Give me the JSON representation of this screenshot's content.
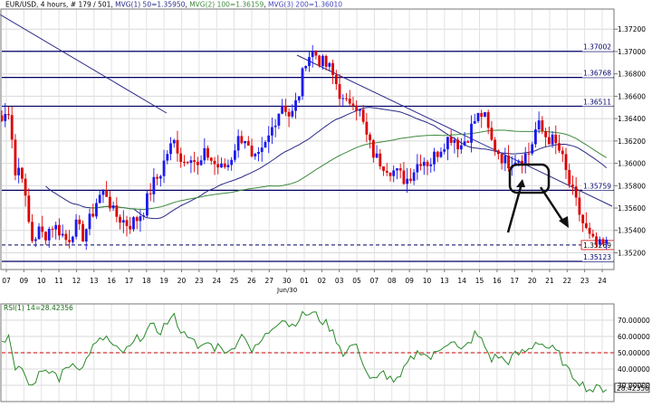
{
  "header": {
    "symbol": "EUR/USD",
    "info": ", 4 hours, # 179 / 501, ",
    "mvg1": "MVG(1) 50=1.35950",
    "mvg2": "MVG(2) 100=1.36159",
    "mvg3": "MVG(3) 200=1.36010"
  },
  "colors": {
    "bull": "#1a1aee",
    "bear": "#dd0000",
    "mvg1": "#2a2a88",
    "mvg2": "#3e8a3e",
    "mvg3": "#4444bb",
    "level": "#000066",
    "rsi": "#2a8a2a",
    "rsi_level": "#cc0000"
  },
  "chart_data": [
    {
      "type": "candlestick",
      "symbol": "EUR/USD",
      "timeframe": "4 hours",
      "ylim": [
        1.3505,
        1.3738
      ],
      "y_ticks": [
        "1.37200",
        "1.37000",
        "1.36800",
        "1.36600",
        "1.36400",
        "1.36200",
        "1.36000",
        "1.35800",
        "1.35600",
        "1.35400",
        "1.35200"
      ],
      "x_ticks": [
        "07",
        "09",
        "10",
        "11",
        "12",
        "13",
        "16",
        "17",
        "18",
        "19",
        "20",
        "23",
        "24",
        "25",
        "26",
        "27",
        "30",
        "01",
        "02",
        "03",
        "05",
        "07",
        "08",
        "09",
        "10",
        "13",
        "14",
        "15",
        "16",
        "17",
        "20",
        "21",
        "22",
        "23",
        "24"
      ],
      "x_sublabel": "Jun/30",
      "grid": true,
      "levels": [
        {
          "value": 1.37002,
          "label": "1.37002"
        },
        {
          "value": 1.36768,
          "label": "1.36768"
        },
        {
          "value": 1.36511,
          "label": "1.36511"
        },
        {
          "value": 1.35759,
          "label": "1.35759"
        },
        {
          "value": 1.35123,
          "label": "1.35123"
        }
      ],
      "current_price": {
        "value": 1.35269,
        "label": "1.35269"
      },
      "close_anchors": [
        [
          0,
          1.3638
        ],
        [
          4,
          1.365
        ],
        [
          7,
          1.359
        ],
        [
          10,
          1.36
        ],
        [
          13,
          1.3555
        ],
        [
          16,
          1.353
        ],
        [
          19,
          1.354
        ],
        [
          22,
          1.3535
        ],
        [
          26,
          1.3545
        ],
        [
          30,
          1.354
        ],
        [
          34,
          1.353
        ],
        [
          38,
          1.3545
        ],
        [
          42,
          1.3535
        ],
        [
          46,
          1.355
        ],
        [
          50,
          1.357
        ],
        [
          54,
          1.3575
        ],
        [
          58,
          1.3555
        ],
        [
          62,
          1.355
        ],
        [
          66,
          1.3545
        ],
        [
          70,
          1.355
        ],
        [
          74,
          1.356
        ],
        [
          78,
          1.358
        ],
        [
          82,
          1.359
        ],
        [
          86,
          1.361
        ],
        [
          90,
          1.362
        ],
        [
          94,
          1.36
        ],
        [
          98,
          1.361
        ],
        [
          102,
          1.3595
        ],
        [
          106,
          1.361
        ],
        [
          110,
          1.36
        ],
        [
          114,
          1.3595
        ],
        [
          118,
          1.36
        ],
        [
          122,
          1.362
        ],
        [
          126,
          1.3625
        ],
        [
          130,
          1.36
        ],
        [
          134,
          1.3605
        ],
        [
          138,
          1.362
        ],
        [
          142,
          1.364
        ],
        [
          146,
          1.3655
        ],
        [
          150,
          1.364
        ],
        [
          154,
          1.366
        ],
        [
          158,
          1.3695
        ],
        [
          162,
          1.37
        ],
        [
          166,
          1.369
        ],
        [
          170,
          1.3685
        ],
        [
          174,
          1.367
        ],
        [
          178,
          1.365
        ],
        [
          182,
          1.366
        ],
        [
          186,
          1.3645
        ],
        [
          190,
          1.362
        ],
        [
          194,
          1.3605
        ],
        [
          198,
          1.36
        ],
        [
          202,
          1.3595
        ],
        [
          206,
          1.359
        ],
        [
          210,
          1.3585
        ],
        [
          214,
          1.3595
        ],
        [
          218,
          1.3605
        ],
        [
          222,
          1.36
        ],
        [
          226,
          1.361
        ],
        [
          230,
          1.362
        ],
        [
          234,
          1.3625
        ],
        [
          238,
          1.3615
        ],
        [
          242,
          1.3625
        ],
        [
          246,
          1.364
        ],
        [
          250,
          1.3645
        ],
        [
          254,
          1.362
        ],
        [
          258,
          1.361
        ],
        [
          262,
          1.36
        ],
        [
          266,
          1.3605
        ],
        [
          270,
          1.3605
        ],
        [
          274,
          1.361
        ],
        [
          278,
          1.3635
        ],
        [
          282,
          1.3625
        ],
        [
          286,
          1.362
        ],
        [
          290,
          1.361
        ],
        [
          294,
          1.3585
        ],
        [
          298,
          1.3565
        ],
        [
          302,
          1.3545
        ],
        [
          306,
          1.353
        ],
        [
          310,
          1.3525
        ],
        [
          314,
          1.3527
        ]
      ],
      "bar_count": 180,
      "moving_averages": [
        {
          "name": "MVG(1) 50",
          "current": 1.3595
        },
        {
          "name": "MVG(2) 100",
          "current": 1.36159
        },
        {
          "name": "MVG(3) 200",
          "current": 1.3601
        }
      ]
    },
    {
      "type": "line",
      "title": "RSI(1) 14=28.42356",
      "ylim": [
        20,
        80
      ],
      "y_ticks": [
        "70.00000",
        "60.00000",
        "50.00000",
        "40.00000",
        "30.00000"
      ],
      "reference_line": 50,
      "current": {
        "value": 28.42356,
        "label": "28.42356"
      },
      "points": [
        [
          0,
          58
        ],
        [
          4,
          60
        ],
        [
          7,
          42
        ],
        [
          10,
          45
        ],
        [
          13,
          32
        ],
        [
          16,
          30
        ],
        [
          19,
          38
        ],
        [
          22,
          36
        ],
        [
          26,
          39
        ],
        [
          30,
          34
        ],
        [
          34,
          42
        ],
        [
          38,
          44
        ],
        [
          42,
          40
        ],
        [
          46,
          52
        ],
        [
          50,
          56
        ],
        [
          54,
          60
        ],
        [
          58,
          53
        ],
        [
          62,
          50
        ],
        [
          66,
          52
        ],
        [
          70,
          58
        ],
        [
          74,
          62
        ],
        [
          78,
          66
        ],
        [
          82,
          63
        ],
        [
          86,
          69
        ],
        [
          90,
          72
        ],
        [
          94,
          61
        ],
        [
          98,
          62
        ],
        [
          102,
          50
        ],
        [
          106,
          57
        ],
        [
          110,
          53
        ],
        [
          114,
          55
        ],
        [
          118,
          48
        ],
        [
          122,
          58
        ],
        [
          126,
          62
        ],
        [
          130,
          50
        ],
        [
          134,
          56
        ],
        [
          138,
          62
        ],
        [
          142,
          68
        ],
        [
          146,
          72
        ],
        [
          150,
          66
        ],
        [
          154,
          71
        ],
        [
          158,
          74
        ],
        [
          162,
          74
        ],
        [
          166,
          70
        ],
        [
          170,
          66
        ],
        [
          174,
          58
        ],
        [
          178,
          48
        ],
        [
          182,
          56
        ],
        [
          186,
          50
        ],
        [
          190,
          36
        ],
        [
          194,
          32
        ],
        [
          198,
          38
        ],
        [
          202,
          34
        ],
        [
          206,
          32
        ],
        [
          210,
          42
        ],
        [
          214,
          48
        ],
        [
          218,
          52
        ],
        [
          222,
          46
        ],
        [
          226,
          50
        ],
        [
          230,
          56
        ],
        [
          234,
          58
        ],
        [
          238,
          50
        ],
        [
          242,
          55
        ],
        [
          246,
          62
        ],
        [
          250,
          56
        ],
        [
          254,
          46
        ],
        [
          258,
          48
        ],
        [
          262,
          44
        ],
        [
          266,
          48
        ],
        [
          270,
          50
        ],
        [
          274,
          52
        ],
        [
          278,
          58
        ],
        [
          282,
          54
        ],
        [
          286,
          52
        ],
        [
          290,
          48
        ],
        [
          294,
          38
        ],
        [
          298,
          35
        ],
        [
          302,
          30
        ],
        [
          306,
          27
        ],
        [
          310,
          28
        ],
        [
          314,
          28.4
        ]
      ]
    }
  ]
}
